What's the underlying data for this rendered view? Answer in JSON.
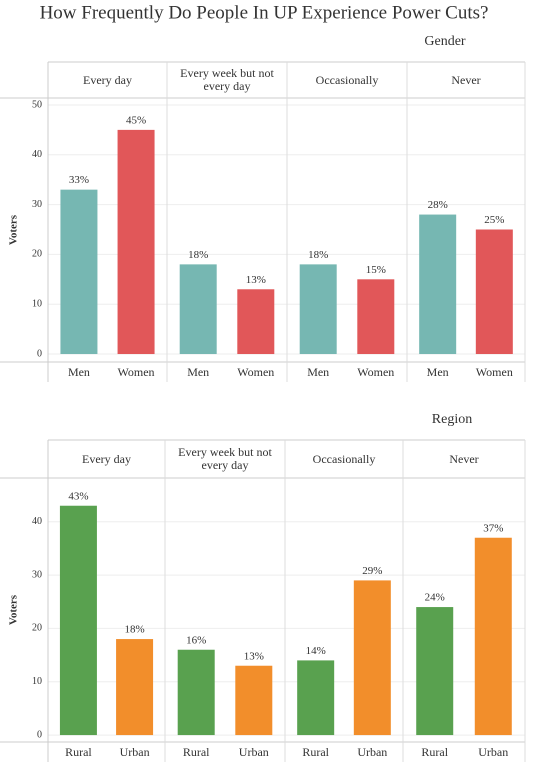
{
  "title": "How Frequently Do People In UP Experience Power Cuts?",
  "chart_data": [
    {
      "type": "bar",
      "facet_label": "Gender",
      "y_label": "Voters",
      "categories": [
        "Every day",
        "Every week but not every day",
        "Occasionally",
        "Never"
      ],
      "series": [
        {
          "name": "Men",
          "color": "#76b7b2",
          "values": [
            33,
            18,
            18,
            28
          ],
          "value_labels": [
            "33%",
            "18%",
            "18%",
            "28%"
          ]
        },
        {
          "name": "Women",
          "color": "#e15759",
          "values": [
            45,
            13,
            15,
            25
          ],
          "value_labels": [
            "45%",
            "13%",
            "15%",
            "25%"
          ]
        }
      ],
      "ylim": [
        -1.6,
        51.4
      ],
      "yticks": [
        0,
        10,
        20,
        30,
        40,
        50
      ],
      "grid": true
    },
    {
      "type": "bar",
      "facet_label": "Region",
      "y_label": "Voters",
      "categories": [
        "Every day",
        "Every week but not every day",
        "Occasionally",
        "Never"
      ],
      "series": [
        {
          "name": "Rural",
          "color": "#59a14f",
          "values": [
            43,
            16,
            14,
            24
          ],
          "value_labels": [
            "43%",
            "16%",
            "14%",
            "24%"
          ]
        },
        {
          "name": "Urban",
          "color": "#f28e2b",
          "values": [
            18,
            13,
            29,
            37
          ],
          "value_labels": [
            "18%",
            "13%",
            "29%",
            "37%"
          ]
        }
      ],
      "ylim": [
        -1.3,
        48.2
      ],
      "yticks": [
        0,
        10,
        20,
        30,
        40
      ],
      "grid": true
    }
  ]
}
